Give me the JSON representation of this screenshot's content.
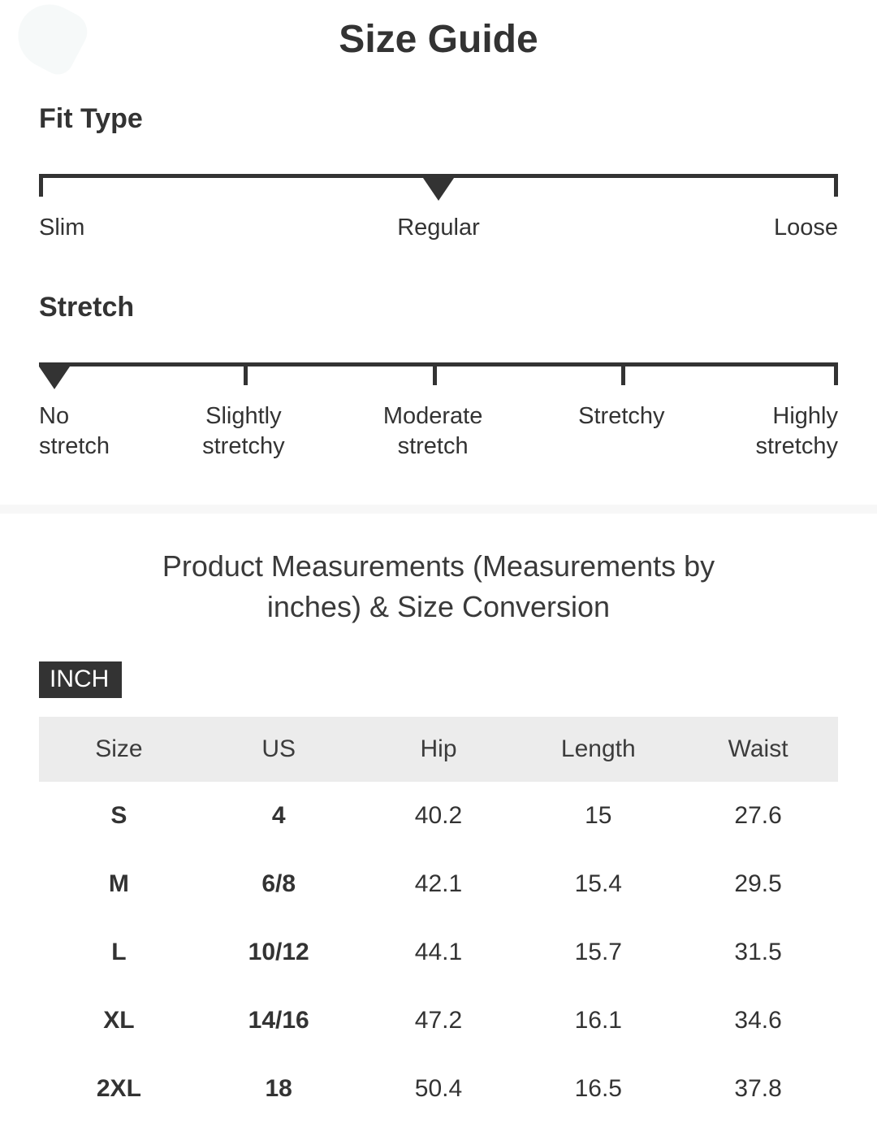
{
  "page": {
    "title": "Size Guide"
  },
  "fit_type": {
    "heading": "Fit Type",
    "labels": [
      "Slim",
      "Regular",
      "Loose"
    ],
    "selected": "Regular",
    "marker_position_percent": 50
  },
  "stretch": {
    "heading": "Stretch",
    "labels": [
      "No stretch",
      "Slightly stretchy",
      "Moderate stretch",
      "Stretchy",
      "Highly stretchy"
    ],
    "selected": "No stretch",
    "marker_position_percent": 0
  },
  "measurements": {
    "heading": "Product Measurements (Measurements by inches) & Size Conversion",
    "unit_badge": "INCH",
    "table": {
      "columns": [
        "Size",
        "US",
        "Hip",
        "Length",
        "Waist"
      ],
      "rows": [
        {
          "cells": [
            "S",
            "4",
            "40.2",
            "15",
            "27.6"
          ]
        },
        {
          "cells": [
            "M",
            "6/8",
            "42.1",
            "15.4",
            "29.5"
          ]
        },
        {
          "cells": [
            "L",
            "10/12",
            "44.1",
            "15.7",
            "31.5"
          ]
        },
        {
          "cells": [
            "XL",
            "14/16",
            "47.2",
            "16.1",
            "34.6"
          ]
        },
        {
          "cells": [
            "2XL",
            "18",
            "50.4",
            "16.5",
            "37.8"
          ]
        }
      ]
    }
  },
  "colors": {
    "text": "#333333",
    "scale_line": "#333333",
    "table_header_bg": "#ececec",
    "divider_bg": "#f7f7f7",
    "badge_bg": "#333333",
    "badge_text": "#ffffff"
  }
}
